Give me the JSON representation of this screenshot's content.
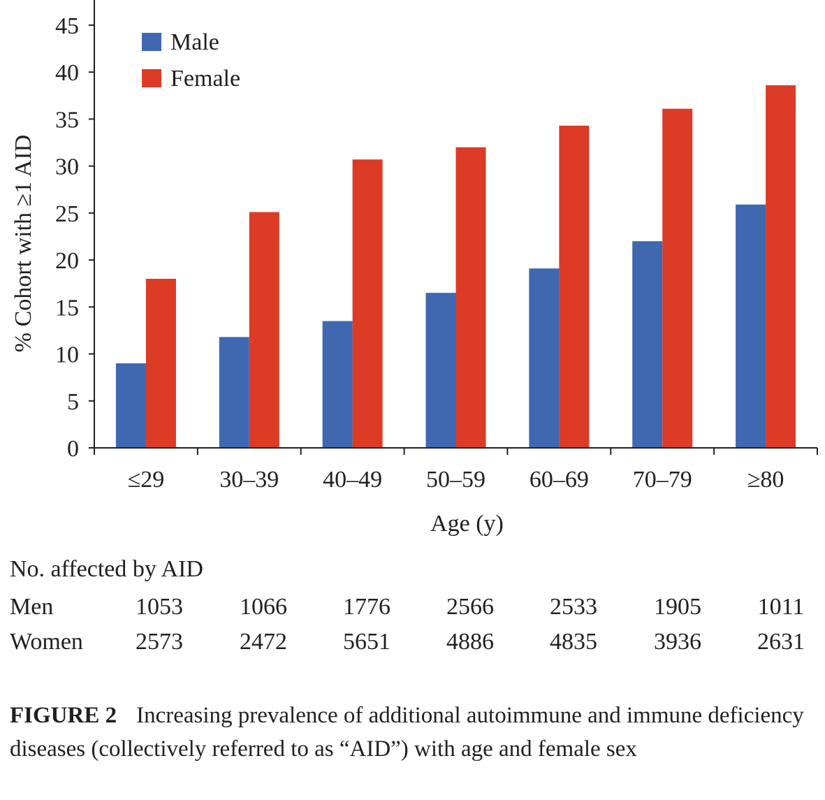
{
  "chart_data": {
    "type": "bar",
    "categories": [
      "≤29",
      "30–39",
      "40–49",
      "50–59",
      "60–69",
      "70–79",
      "≥80"
    ],
    "series": [
      {
        "name": "Male",
        "color": "#3f68b1",
        "values": [
          9.0,
          11.8,
          13.5,
          16.5,
          19.1,
          22.0,
          25.9
        ]
      },
      {
        "name": "Female",
        "color": "#dc3b26",
        "values": [
          18.0,
          25.1,
          30.7,
          32.0,
          34.3,
          36.1,
          38.6
        ]
      }
    ],
    "xlabel": "Age (y)",
    "ylabel": "% Cohort with ≥1 AID",
    "ylim": [
      0,
      45
    ],
    "yticks": [
      0,
      5,
      10,
      15,
      20,
      25,
      30,
      35,
      40,
      45
    ],
    "legend_position": "top-left",
    "grid": false
  },
  "counts_table": {
    "title": "No. affected by AID",
    "rows": [
      {
        "label": "Men",
        "values": [
          "1053",
          "1066",
          "1776",
          "2566",
          "2533",
          "1905",
          "1011"
        ]
      },
      {
        "label": "Women",
        "values": [
          "2573",
          "2472",
          "5651",
          "4886",
          "4835",
          "3936",
          "2631"
        ]
      }
    ]
  },
  "caption": {
    "label": "FIGURE 2",
    "text": "Increasing prevalence of additional autoimmune and immune deficiency diseases (collectively referred to as “AID”) with age and female sex"
  }
}
